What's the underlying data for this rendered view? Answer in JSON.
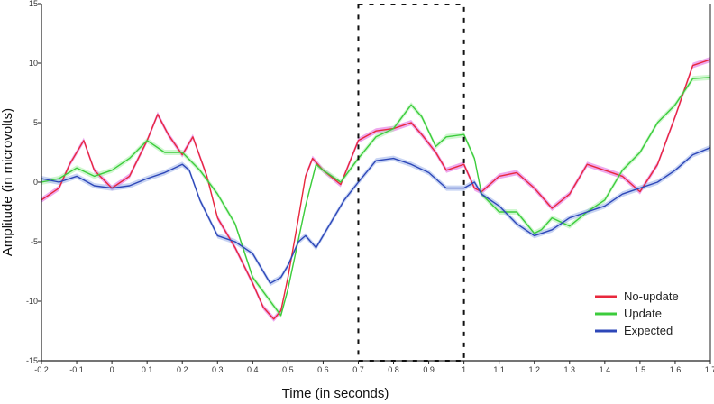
{
  "chart_data": {
    "type": "line",
    "title": "",
    "xlabel": "Time (in seconds)",
    "ylabel": "Amplitude (in microvolts)",
    "xlim": [
      -0.2,
      1.7
    ],
    "ylim": [
      -15,
      15
    ],
    "x_ticks": [
      -0.2,
      -0.1,
      0,
      0.1,
      0.2,
      0.3,
      0.4,
      0.5,
      0.6,
      0.7,
      0.8,
      0.9,
      1,
      1.1,
      1.2,
      1.3,
      1.4,
      1.5,
      1.6,
      1.7
    ],
    "x_tick_labels": [
      "-0.2",
      "-0.1",
      "0",
      "0.1",
      "0.2",
      "0.3",
      "0.4",
      "0.5",
      "0.6",
      "0.7",
      "0.8",
      "0.9",
      "1",
      "1.1",
      "1.2",
      "1.3",
      "1.4",
      "1.5",
      "1.6",
      "1.7"
    ],
    "y_ticks": [
      -15,
      -10,
      -5,
      0,
      5,
      10,
      15
    ],
    "y_tick_labels": [
      "-15",
      "-10",
      "-5",
      "0",
      "5",
      "10",
      "15"
    ],
    "grid": false,
    "legend_position": "bottom-right",
    "highlight_window": [
      0.7,
      1.0
    ],
    "series": [
      {
        "name": "No-update",
        "color": "#e8283c",
        "band_color": "#e060e0",
        "x": [
          -0.2,
          -0.15,
          -0.12,
          -0.08,
          -0.05,
          0,
          0.05,
          0.1,
          0.13,
          0.16,
          0.2,
          0.23,
          0.27,
          0.3,
          0.35,
          0.4,
          0.43,
          0.46,
          0.48,
          0.5,
          0.53,
          0.55,
          0.57,
          0.6,
          0.65,
          0.7,
          0.75,
          0.8,
          0.85,
          0.88,
          0.92,
          0.95,
          1.0,
          1.03,
          1.05,
          1.1,
          1.15,
          1.2,
          1.25,
          1.3,
          1.35,
          1.4,
          1.45,
          1.5,
          1.55,
          1.6,
          1.65,
          1.7
        ],
        "y": [
          -1.5,
          -0.5,
          1.5,
          3.5,
          1.0,
          -0.5,
          0.5,
          3.5,
          5.7,
          4.0,
          2.3,
          3.8,
          0.5,
          -3.0,
          -5.5,
          -8.5,
          -10.5,
          -11.5,
          -10.8,
          -8.0,
          -3.0,
          0.5,
          2.0,
          1.0,
          -0.2,
          3.5,
          4.3,
          4.5,
          5.0,
          4.0,
          2.5,
          1.0,
          1.5,
          -0.5,
          -0.8,
          0.5,
          0.8,
          -0.5,
          -2.2,
          -1.0,
          1.5,
          1.0,
          0.5,
          -0.8,
          1.5,
          5.5,
          9.8,
          10.3
        ]
      },
      {
        "name": "Update",
        "color": "#3ccc3c",
        "band_color": "#aaf0aa",
        "x": [
          -0.2,
          -0.15,
          -0.1,
          -0.05,
          0,
          0.05,
          0.1,
          0.15,
          0.2,
          0.25,
          0.3,
          0.35,
          0.4,
          0.45,
          0.48,
          0.5,
          0.55,
          0.58,
          0.6,
          0.65,
          0.7,
          0.75,
          0.8,
          0.85,
          0.88,
          0.92,
          0.95,
          1.0,
          1.03,
          1.05,
          1.1,
          1.15,
          1.2,
          1.22,
          1.25,
          1.3,
          1.35,
          1.4,
          1.45,
          1.5,
          1.55,
          1.6,
          1.65,
          1.7
        ],
        "y": [
          0,
          0.3,
          1.2,
          0.5,
          1.0,
          2.0,
          3.5,
          2.5,
          2.5,
          1.0,
          -1.0,
          -3.5,
          -8.0,
          -10.0,
          -11.2,
          -9.0,
          -2.0,
          1.5,
          1.0,
          0,
          2.0,
          3.8,
          4.5,
          6.5,
          5.5,
          3.0,
          3.8,
          4.0,
          2.0,
          -1.0,
          -2.5,
          -2.5,
          -4.3,
          -4.0,
          -3.0,
          -3.7,
          -2.5,
          -1.5,
          1.0,
          2.5,
          5.0,
          6.5,
          8.7,
          8.8
        ]
      },
      {
        "name": "Expected",
        "color": "#2d47b8",
        "band_color": "#9ab0ea",
        "x": [
          -0.2,
          -0.15,
          -0.1,
          -0.05,
          0,
          0.05,
          0.1,
          0.15,
          0.2,
          0.22,
          0.25,
          0.3,
          0.35,
          0.4,
          0.43,
          0.45,
          0.48,
          0.5,
          0.53,
          0.55,
          0.58,
          0.6,
          0.63,
          0.66,
          0.7,
          0.75,
          0.8,
          0.85,
          0.9,
          0.95,
          1.0,
          1.03,
          1.05,
          1.1,
          1.15,
          1.2,
          1.25,
          1.3,
          1.35,
          1.4,
          1.45,
          1.5,
          1.55,
          1.6,
          1.65,
          1.7
        ],
        "y": [
          0.3,
          0,
          0.5,
          -0.3,
          -0.5,
          -0.3,
          0.3,
          0.8,
          1.5,
          1.0,
          -1.5,
          -4.5,
          -5.0,
          -6.0,
          -7.5,
          -8.5,
          -8.0,
          -7.0,
          -5.0,
          -4.5,
          -5.5,
          -4.5,
          -3.0,
          -1.5,
          0,
          1.8,
          2.0,
          1.5,
          0.8,
          -0.5,
          -0.5,
          0,
          -1.0,
          -2.0,
          -3.5,
          -4.5,
          -4.0,
          -3.0,
          -2.5,
          -2.0,
          -1.0,
          -0.5,
          0,
          1.0,
          2.3,
          2.9
        ]
      }
    ]
  }
}
